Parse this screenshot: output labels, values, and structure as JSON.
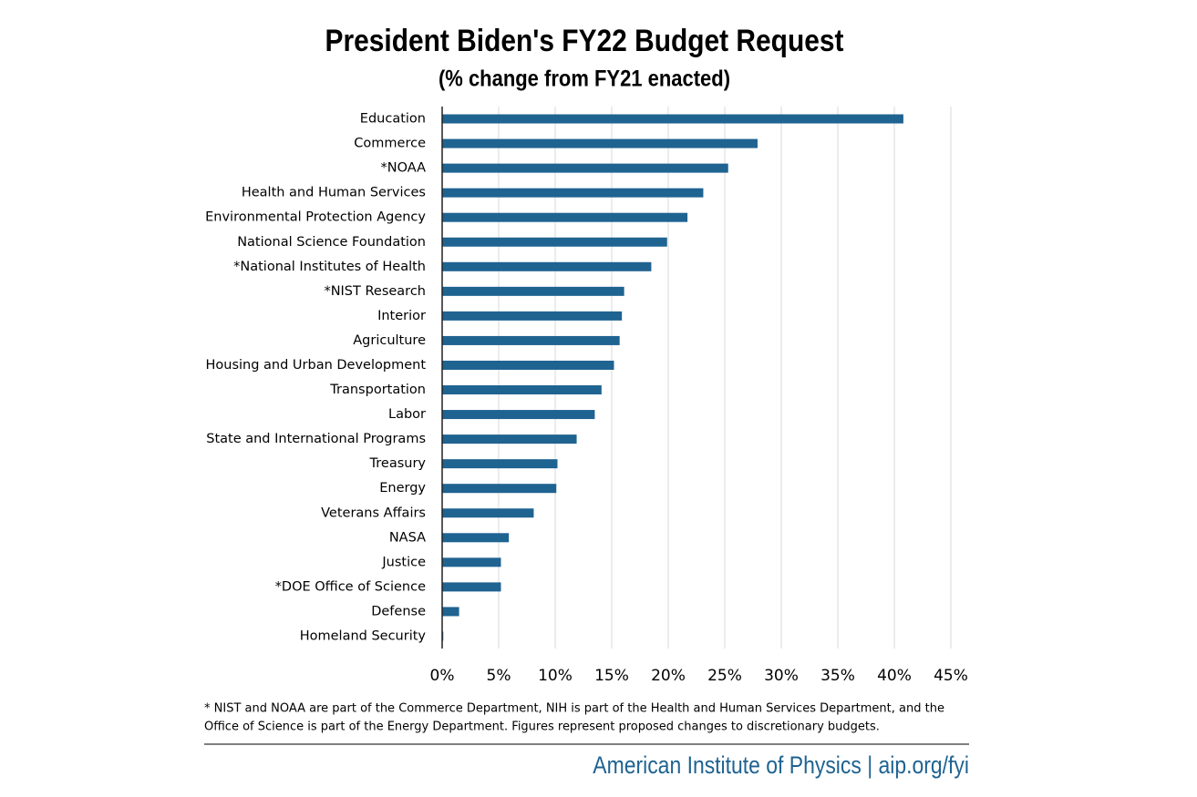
{
  "chart_data": {
    "type": "hbar",
    "title": "President Biden's FY22 Budget Request",
    "subtitle": "(% change from FY21 enacted)",
    "categories": [
      "Education",
      "Commerce",
      "*NOAA",
      "Health and Human Services",
      "Environmental Protection Agency",
      "National Science Foundation",
      "*National Institutes of Health",
      "*NIST Research",
      "Interior",
      "Agriculture",
      "Housing and Urban Development",
      "Transportation",
      "Labor",
      "State and International Programs",
      "Treasury",
      "Energy",
      "Veterans Affairs",
      "NASA",
      "Justice",
      "*DOE Office of Science",
      "Defense",
      "Homeland Security"
    ],
    "values": [
      40.8,
      27.9,
      25.3,
      23.1,
      21.7,
      19.9,
      18.5,
      16.1,
      15.9,
      15.7,
      15.2,
      14.1,
      13.5,
      11.9,
      10.2,
      10.1,
      8.1,
      5.9,
      5.2,
      5.2,
      1.5,
      0.1
    ],
    "color": "#1f6391",
    "xlim": [
      0,
      45
    ],
    "xticks": [
      {
        "value": 0,
        "label": "0%"
      },
      {
        "value": 5,
        "label": "5%"
      },
      {
        "value": 10,
        "label": "10%"
      },
      {
        "value": 15,
        "label": "15%"
      },
      {
        "value": 20,
        "label": "20%"
      },
      {
        "value": 25,
        "label": "25%"
      },
      {
        "value": 30,
        "label": "30%"
      },
      {
        "value": 35,
        "label": "35%"
      },
      {
        "value": 40,
        "label": "40%"
      },
      {
        "value": 45,
        "label": "45%"
      }
    ],
    "grid": true,
    "notes": [
      "* NIST and NOAA are part of the Commerce Department, NIH is part of the Health and Human Services Department, and the",
      "Office of Science is part of the Energy Department. Figures represent proposed changes to discretionary budgets."
    ],
    "source": "American Institute of Physics | aip.org/fyi"
  }
}
